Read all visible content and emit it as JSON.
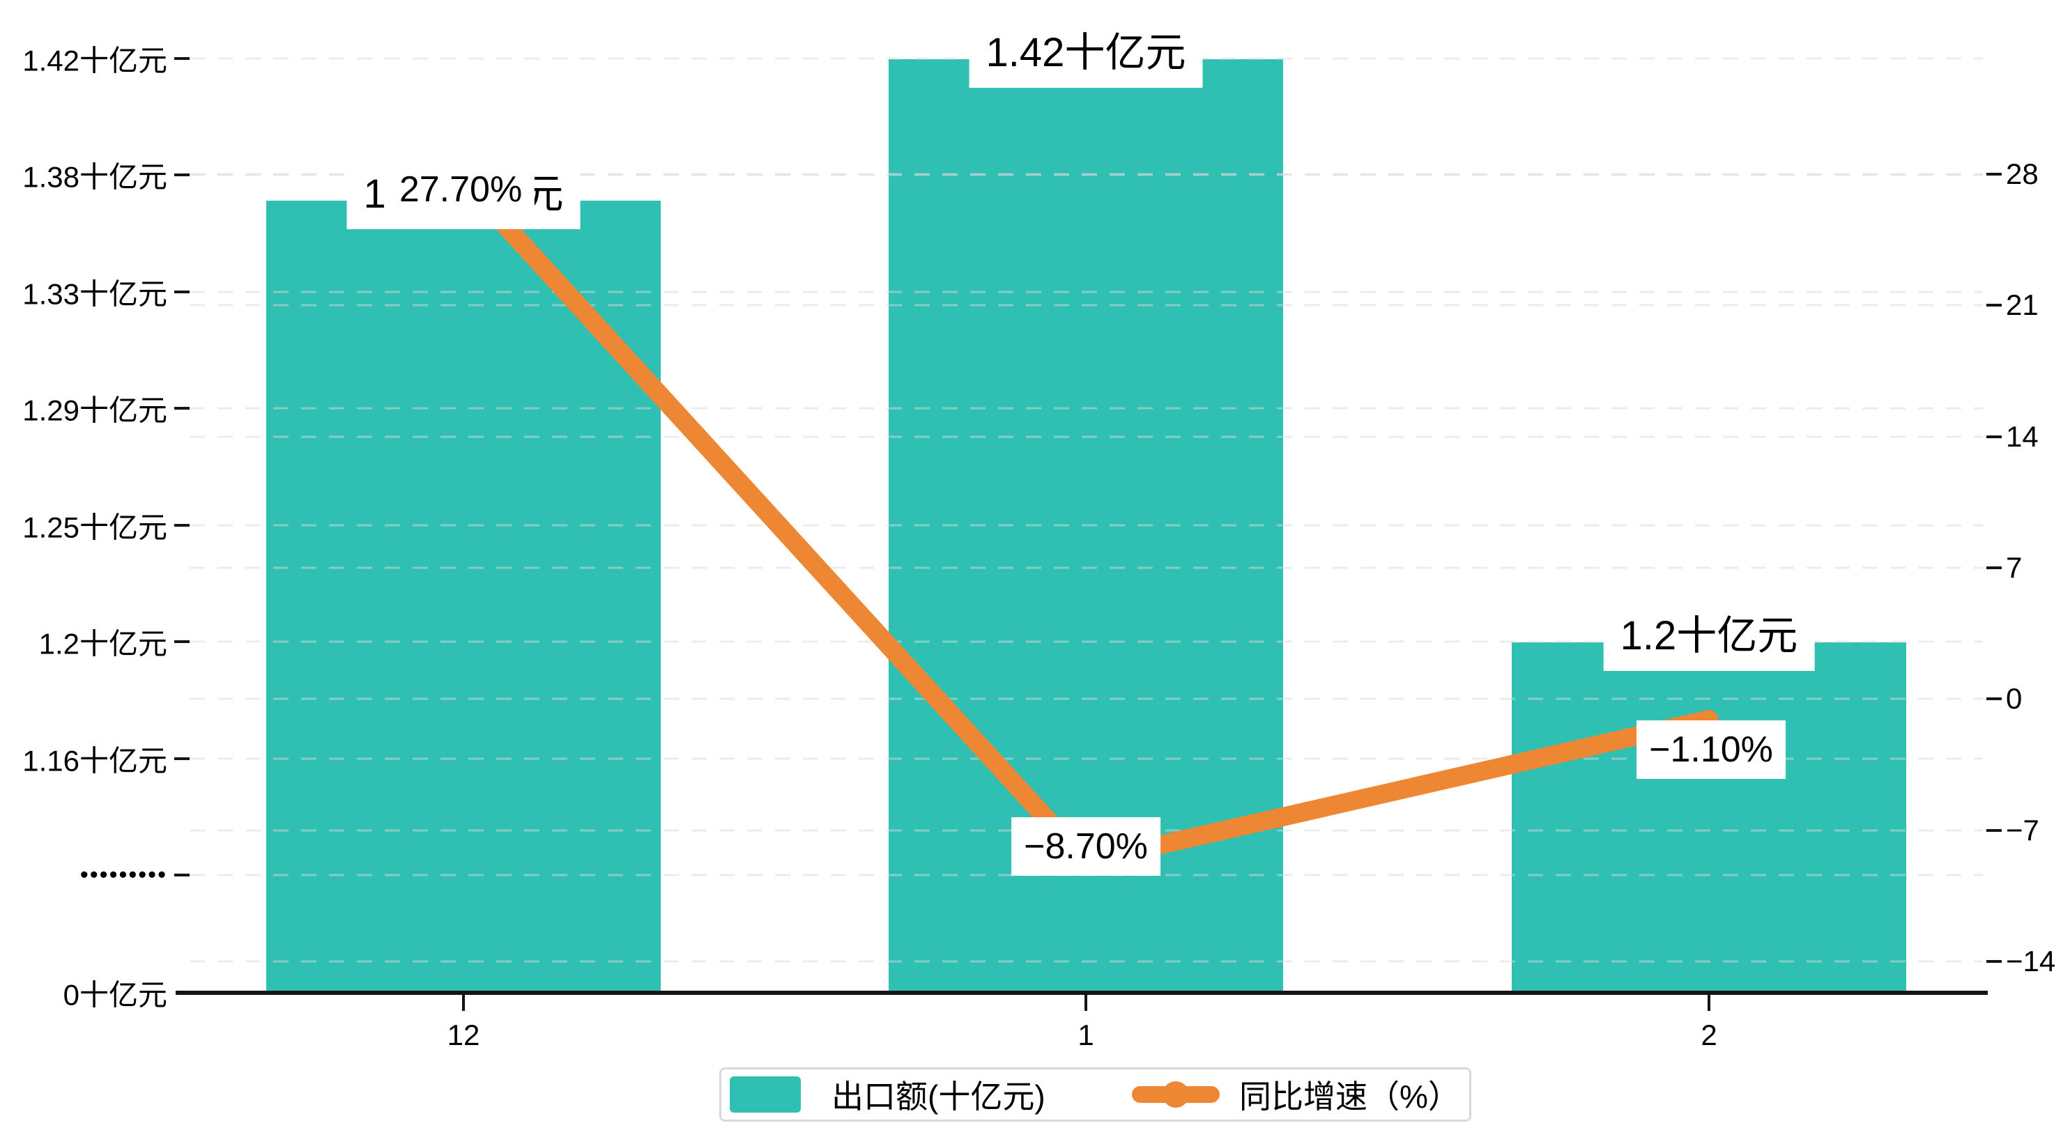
{
  "chart_data": {
    "type": "bar",
    "combo": "bar+line",
    "categories": [
      "12",
      "1",
      "2"
    ],
    "series": [
      {
        "name": "出口额(十亿元)",
        "type": "bar",
        "yaxis": "left",
        "color": "#2FBFB3",
        "values": [
          1.37,
          1.42,
          1.2
        ],
        "labels": [
          "1.37十亿元",
          "1.42十亿元",
          "1.2十亿元"
        ]
      },
      {
        "name": "同比增速（%）",
        "type": "line",
        "yaxis": "right",
        "color": "#ED8733",
        "values": [
          27.7,
          -8.7,
          -1.1
        ],
        "labels": [
          "27.70%",
          "−8.70%",
          "−1.10%"
        ]
      }
    ],
    "left_axis": {
      "tick_labels": [
        "1.42十亿元",
        "1.38十亿元",
        "1.33十亿元",
        "1.29十亿元",
        "1.25十亿元",
        "1.2十亿元",
        "1.16十亿元",
        "•••••••••",
        "0十亿元"
      ],
      "has_break": true,
      "break_label_index": 7
    },
    "right_axis": {
      "tick_labels": [
        "28",
        "21",
        "14",
        "7",
        "0",
        "−7",
        "−14"
      ],
      "min": -14,
      "max": 28,
      "step": 7
    },
    "x_axis": {
      "tick_labels": [
        "12",
        "1",
        "2"
      ]
    },
    "grid": "dashed",
    "legend_position": "bottom"
  },
  "legend": {
    "items": [
      {
        "label": "出口额(十亿元)",
        "color": "#2FBFB3",
        "marker": "bar-swatch"
      },
      {
        "label": "同比增速（%）",
        "color": "#ED8733",
        "marker": "line-with-dot"
      }
    ]
  },
  "colors": {
    "bar": "#2FBFB3",
    "line": "#ED8733",
    "grid": "#d9d9d9",
    "axis": "#141414",
    "label_bg": "#ffffff",
    "text": "#000000"
  }
}
